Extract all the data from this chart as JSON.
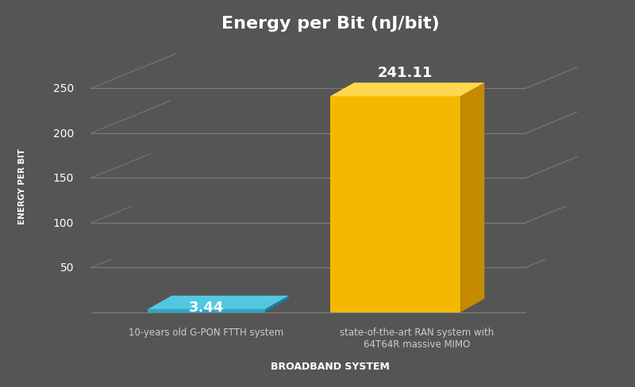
{
  "title": "Energy per Bit (nJ/bit)",
  "xlabel": "BROADBAND SYSTEM",
  "ylabel": "ENERGY PER BIT",
  "categories": [
    "10-years old G-PON FTTH system",
    "state-of-the-art RAN system with\n64T64R massive MIMO"
  ],
  "values": [
    3.44,
    241.11
  ],
  "bar_colors_front": [
    "#29A8CC",
    "#F5B800"
  ],
  "bar_colors_top": [
    "#52C8E0",
    "#FFD84D"
  ],
  "bar_colors_side": [
    "#1A7A9A",
    "#C48A00"
  ],
  "background_color": "#555555",
  "grid_color": "#999999",
  "text_color": "#FFFFFF",
  "label_color": "#CCCCCC",
  "ylim": [
    0,
    275
  ],
  "yticks": [
    0,
    50,
    100,
    150,
    200,
    250
  ],
  "title_fontsize": 16,
  "label_fontsize": 8.5,
  "value_fontsize": 13,
  "xlabel_fontsize": 9,
  "ylabel_fontsize": 7.5
}
